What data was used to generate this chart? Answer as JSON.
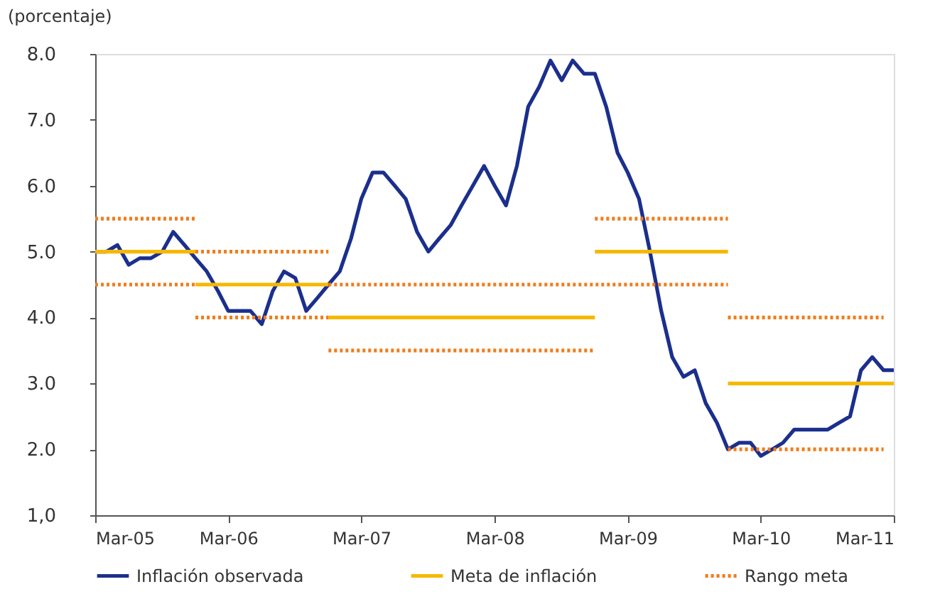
{
  "chart_data": {
    "type": "line",
    "ylabel": "(porcentaje)",
    "legend": "bottom",
    "grid": false,
    "xlim": [
      "2005-03",
      "2011-03"
    ],
    "xticks": [
      {
        "value": "2005-03",
        "label": "Mar-05"
      },
      {
        "value": "2006-03",
        "label": "Mar-06"
      },
      {
        "value": "2007-03",
        "label": "Mar-07"
      },
      {
        "value": "2008-03",
        "label": "Mar-08"
      },
      {
        "value": "2009-03",
        "label": "Mar-09"
      },
      {
        "value": "2010-03",
        "label": "Mar-10"
      },
      {
        "value": "2011-03",
        "label": "Mar-11"
      }
    ],
    "ylim": [
      1,
      8
    ],
    "yticks": [
      {
        "value": 1,
        "label": "1,0"
      },
      {
        "value": 2,
        "label": "2.0"
      },
      {
        "value": 3,
        "label": "3.0"
      },
      {
        "value": 4,
        "label": "4.0"
      },
      {
        "value": 5,
        "label": "5.0"
      },
      {
        "value": 6,
        "label": "6.0"
      },
      {
        "value": 7,
        "label": "7.0"
      },
      {
        "value": 8,
        "label": "8.0"
      }
    ],
    "series": [
      {
        "name": "Inflación observada",
        "color": "#1b2f8c",
        "line_style": "solid",
        "x": [
          "2005-03",
          "2005-04",
          "2005-05",
          "2005-06",
          "2005-07",
          "2005-08",
          "2005-09",
          "2005-10",
          "2005-11",
          "2005-12",
          "2006-01",
          "2006-02",
          "2006-03",
          "2006-04",
          "2006-05",
          "2006-06",
          "2006-07",
          "2006-08",
          "2006-09",
          "2006-10",
          "2006-11",
          "2006-12",
          "2007-01",
          "2007-02",
          "2007-03",
          "2007-04",
          "2007-05",
          "2007-06",
          "2007-07",
          "2007-08",
          "2007-09",
          "2007-10",
          "2007-11",
          "2007-12",
          "2008-01",
          "2008-02",
          "2008-03",
          "2008-04",
          "2008-05",
          "2008-06",
          "2008-07",
          "2008-08",
          "2008-09",
          "2008-10",
          "2008-11",
          "2008-12",
          "2009-01",
          "2009-02",
          "2009-03",
          "2009-04",
          "2009-05",
          "2009-06",
          "2009-07",
          "2009-08",
          "2009-09",
          "2009-10",
          "2009-11",
          "2009-12",
          "2010-01",
          "2010-02",
          "2010-03",
          "2010-04",
          "2010-05",
          "2010-06",
          "2010-07",
          "2010-08",
          "2010-09",
          "2010-10",
          "2010-11",
          "2010-12",
          "2011-01",
          "2011-02",
          "2011-03"
        ],
        "values": [
          5.0,
          5.0,
          5.1,
          4.8,
          4.9,
          4.9,
          5.0,
          5.3,
          5.1,
          4.9,
          4.7,
          4.4,
          4.1,
          4.1,
          4.1,
          3.9,
          4.4,
          4.7,
          4.6,
          4.1,
          4.3,
          4.5,
          4.7,
          5.2,
          5.8,
          6.2,
          6.2,
          6.0,
          5.8,
          5.3,
          5.0,
          5.2,
          5.4,
          5.7,
          6.0,
          6.3,
          6.0,
          5.7,
          6.3,
          7.2,
          7.5,
          7.9,
          7.6,
          7.9,
          7.7,
          7.7,
          7.2,
          6.5,
          6.2,
          5.8,
          5.0,
          4.1,
          3.4,
          3.1,
          3.2,
          2.7,
          2.4,
          2.0,
          2.1,
          2.1,
          1.9,
          2.0,
          2.1,
          2.3,
          2.3,
          2.3,
          2.3,
          2.4,
          2.5,
          3.2,
          3.4,
          3.2,
          3.2
        ]
      },
      {
        "name": "Meta de inflación",
        "color": "#f5b800",
        "line_style": "solid",
        "x": [
          "2005-03",
          "2005-12"
        ],
        "values": [
          5.0,
          5.0
        ]
      },
      {
        "color": "#f5b800",
        "line_style": "solid",
        "x": [
          "2005-12",
          "2006-12"
        ],
        "values": [
          4.5,
          4.5
        ]
      },
      {
        "color": "#f5b800",
        "line_style": "solid",
        "x": [
          "2006-12",
          "2008-12"
        ],
        "values": [
          4.0,
          4.0
        ]
      },
      {
        "color": "#f5b800",
        "line_style": "solid",
        "x": [
          "2008-12",
          "2009-12"
        ],
        "values": [
          5.0,
          5.0
        ]
      },
      {
        "color": "#f5b800",
        "line_style": "solid",
        "x": [
          "2009-12",
          "2011-03"
        ],
        "values": [
          3.0,
          3.0
        ]
      },
      {
        "name": "Rango meta",
        "color": "#f07c1a",
        "line_style": "dotted",
        "x": [
          "2005-03",
          "2005-12"
        ],
        "values": [
          5.5,
          5.5
        ]
      },
      {
        "color": "#f07c1a",
        "line_style": "dotted",
        "x": [
          "2005-03",
          "2005-12"
        ],
        "values": [
          4.5,
          4.5
        ]
      },
      {
        "color": "#f07c1a",
        "line_style": "dotted",
        "x": [
          "2005-12",
          "2006-12"
        ],
        "values": [
          5.0,
          5.0
        ]
      },
      {
        "color": "#f07c1a",
        "line_style": "dotted",
        "x": [
          "2005-12",
          "2006-12"
        ],
        "values": [
          4.0,
          4.0
        ]
      },
      {
        "color": "#f07c1a",
        "line_style": "dotted",
        "x": [
          "2006-12",
          "2008-12",
          "2009-12"
        ],
        "values": [
          4.5,
          4.5,
          4.5
        ]
      },
      {
        "color": "#f07c1a",
        "line_style": "dotted",
        "x": [
          "2006-12",
          "2008-12"
        ],
        "values": [
          3.5,
          3.5
        ]
      },
      {
        "color": "#f07c1a",
        "line_style": "dotted",
        "x": [
          "2008-12",
          "2009-12"
        ],
        "values": [
          5.5,
          5.5
        ]
      },
      {
        "color": "#f07c1a",
        "line_style": "dotted",
        "x": [
          "2009-12",
          "2011-02"
        ],
        "values": [
          4.0,
          4.0
        ]
      },
      {
        "color": "#f07c1a",
        "line_style": "dotted",
        "x": [
          "2009-12",
          "2011-02"
        ],
        "values": [
          2.0,
          2.0
        ]
      }
    ]
  }
}
